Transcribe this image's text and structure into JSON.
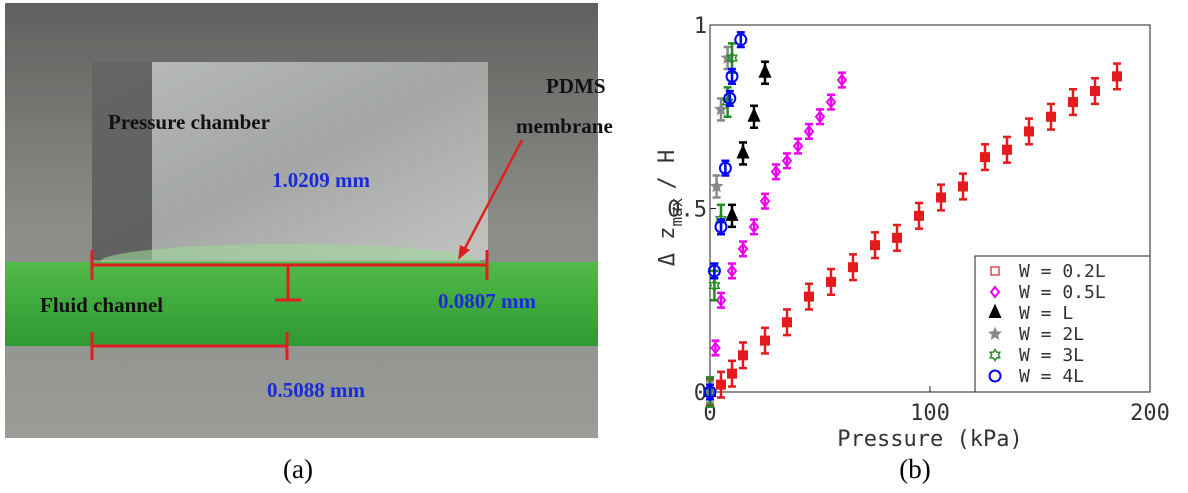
{
  "photo": {
    "labels": [
      "Pressure chamber",
      "PDMS",
      "membrane",
      "1.0209 mm",
      "0.0807 mm",
      "Fluid channel",
      "0.5088 mm"
    ]
  },
  "captions": [
    "(a)",
    "(b)"
  ],
  "chart_data": {
    "type": "scatter",
    "xlabel": "Pressure (kPa)",
    "ylabel": "Δ z",
    "ylabel_sub": "max",
    "ylabel_tail": "/ H",
    "xlim": [
      0,
      200
    ],
    "xticks": [
      0,
      100,
      200
    ],
    "ylim": [
      0,
      1
    ],
    "yticks": [
      0,
      0.5,
      1
    ],
    "legend": "lower right",
    "series": [
      {
        "name": "W = 0.2L",
        "color": "#e41a1c",
        "marker": "square",
        "error": 0.035,
        "x": [
          0,
          5,
          10,
          15,
          25,
          35,
          45,
          55,
          65,
          75,
          85,
          95,
          105,
          115,
          125,
          135,
          145,
          155,
          165,
          175,
          185
        ],
        "values": [
          0,
          0.02,
          0.05,
          0.1,
          0.14,
          0.19,
          0.26,
          0.3,
          0.34,
          0.4,
          0.42,
          0.48,
          0.53,
          0.56,
          0.64,
          0.66,
          0.71,
          0.75,
          0.79,
          0.82,
          0.86
        ]
      },
      {
        "name": "W = 0.5L",
        "color": "#ee00ee",
        "marker": "diamond",
        "error": 0.02,
        "x": [
          2.5,
          5,
          10,
          15,
          20,
          25,
          30,
          35,
          40,
          45,
          50,
          55,
          60
        ],
        "values": [
          0.12,
          0.25,
          0.33,
          0.39,
          0.45,
          0.52,
          0.6,
          0.63,
          0.67,
          0.71,
          0.75,
          0.79,
          0.85
        ]
      },
      {
        "name": "W = L",
        "color": "#000000",
        "marker": "triangle",
        "error": 0.03,
        "x": [
          0,
          10,
          15,
          20,
          25
        ],
        "values": [
          0,
          0.48,
          0.65,
          0.75,
          0.87
        ]
      },
      {
        "name": "W = 2L",
        "color": "#888888",
        "marker": "star",
        "error": 0.03,
        "x": [
          0,
          3,
          5,
          8
        ],
        "values": [
          0,
          0.56,
          0.77,
          0.91
        ]
      },
      {
        "name": "W = 3L",
        "color": "#228b22",
        "marker": "hexagram",
        "error": 0.04,
        "x": [
          0,
          2,
          5,
          8,
          10
        ],
        "values": [
          0,
          0.29,
          0.47,
          0.79,
          0.91
        ]
      },
      {
        "name": "W = 4L",
        "color": "#0000ff",
        "marker": "circle",
        "error": 0.02,
        "x": [
          0,
          2,
          5,
          7,
          9,
          10,
          14
        ],
        "values": [
          0,
          0.33,
          0.45,
          0.61,
          0.8,
          0.86,
          0.96
        ]
      }
    ]
  }
}
